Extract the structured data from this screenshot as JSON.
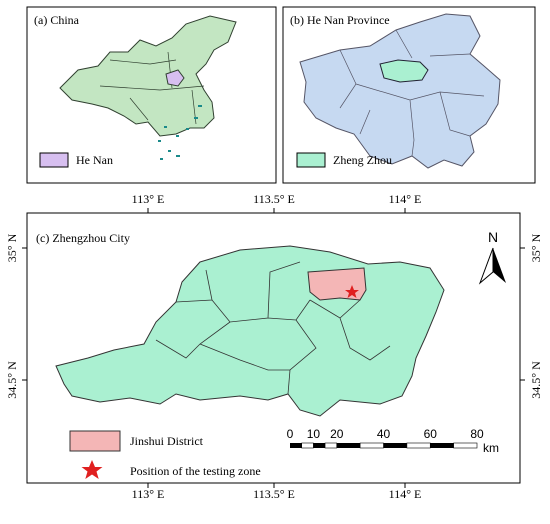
{
  "panels": {
    "a": {
      "title": "(a) China",
      "legend": "He Nan"
    },
    "b": {
      "title": "(b) He Nan Province",
      "legend": "Zheng Zhou"
    },
    "c": {
      "title": "(c) Zhengzhou City",
      "legend": [
        "Jinshui District",
        "Position of the testing zone"
      ]
    }
  },
  "longitude_labels": [
    "113° E",
    "113.5° E",
    "114° E"
  ],
  "latitude_labels": [
    "35° N",
    "34.5° N"
  ],
  "north_arrow": "N",
  "scale_bar": {
    "ticks": [
      0,
      10,
      20,
      40,
      60,
      80
    ],
    "unit": "km"
  }
}
